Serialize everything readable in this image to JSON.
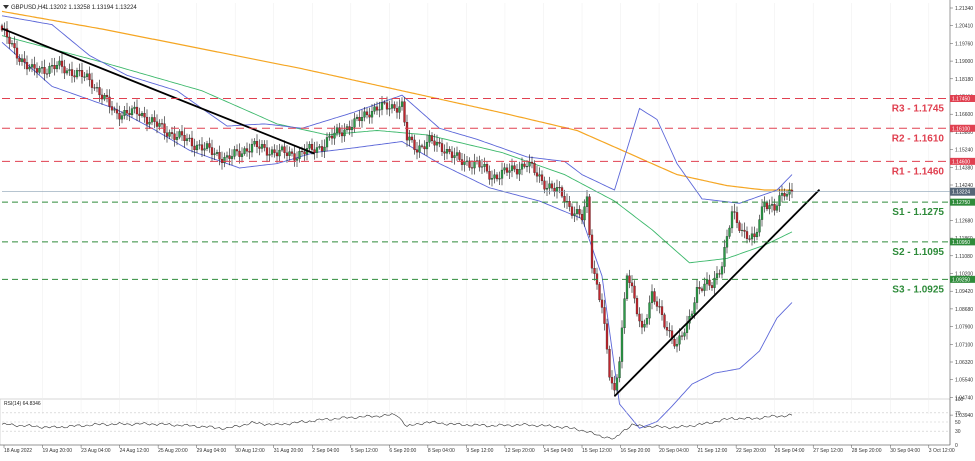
{
  "header": {
    "symbol_label": "GBPUSD,H4",
    "ohlc_text": "1.13202 1.13258 1.13194 1.13224"
  },
  "chart_data": {
    "type": "candlestick",
    "y_axis": {
      "range": [
        1.031,
        1.2178
      ],
      "ticks": [
        "1.21340",
        "1.20410",
        "1.19760",
        "1.19000",
        "1.18180",
        "1.17400",
        "1.16600",
        "1.15800",
        "1.15240",
        "1.14380",
        "1.14240",
        "1.13460",
        "1.12680",
        "1.11860",
        "1.11080",
        "1.10200",
        "1.09420",
        "1.08680",
        "1.07900",
        "1.07100",
        "1.06320",
        "1.05540",
        "1.04740",
        "1.03940"
      ]
    },
    "x_axis": {
      "ticks": [
        "18 Aug 2022",
        "19 Aug 20:00",
        "23 Aug 04:00",
        "24 Aug 12:00",
        "25 Aug 20:00",
        "29 Aug 04:00",
        "30 Aug 12:00",
        "31 Aug 20:00",
        "2 Sep 04:00",
        "5 Sep 12:00",
        "6 Sep 20:00",
        "8 Sep 04:00",
        "9 Sep 12:00",
        "12 Sep 20:00",
        "14 Sep 04:00",
        "15 Sep 12:00",
        "16 Sep 20:00",
        "20 Sep 04:00",
        "21 Sep 12:00",
        "22 Sep 20:00",
        "26 Sep 04:00",
        "27 Sep 12:00",
        "28 Sep 20:00",
        "30 Sep 04:00",
        "3 Oct 12:00"
      ]
    },
    "current_price": 1.13224,
    "current_price_label": "1.13224",
    "levels": [
      {
        "label": "R3 - 1.1745",
        "tag": "1.17450",
        "value": 1.1745,
        "color": "#e04050",
        "dash": "8,5"
      },
      {
        "label": "R2 - 1.1610",
        "tag": "1.16100",
        "value": 1.161,
        "color": "#e04050",
        "dash": "8,5"
      },
      {
        "label": "R1 - 1.1460",
        "tag": "1.14600",
        "value": 1.146,
        "color": "#e04050",
        "dash": "8,5"
      },
      {
        "label": "S1 - 1.1275",
        "tag": "1.12750",
        "value": 1.1275,
        "color": "#2e8b3a",
        "dash": "6,4"
      },
      {
        "label": "S2 - 1.1095",
        "tag": "1.10950",
        "value": 1.1095,
        "color": "#2e8b3a",
        "dash": "6,4"
      },
      {
        "label": "S3 - 1.0925",
        "tag": "1.09250",
        "value": 1.0925,
        "color": "#2e8b3a",
        "dash": "6,4"
      }
    ],
    "price_anchors": [
      [
        0,
        1.2055
      ],
      [
        5,
        1.196
      ],
      [
        12,
        1.187
      ],
      [
        22,
        1.189
      ],
      [
        30,
        1.186
      ],
      [
        36,
        1.182
      ],
      [
        45,
        1.168
      ],
      [
        55,
        1.168
      ],
      [
        65,
        1.16
      ],
      [
        75,
        1.155
      ],
      [
        90,
        1.147
      ],
      [
        100,
        1.153
      ],
      [
        110,
        1.15
      ],
      [
        118,
        1.149
      ],
      [
        128,
        1.153
      ],
      [
        134,
        1.159
      ],
      [
        141,
        1.163
      ],
      [
        147,
        1.169
      ],
      [
        155,
        1.171
      ],
      [
        160,
        1.171
      ],
      [
        162,
        1.156
      ],
      [
        166,
        1.152
      ],
      [
        171,
        1.155
      ],
      [
        177,
        1.152
      ],
      [
        183,
        1.146
      ],
      [
        190,
        1.145
      ],
      [
        196,
        1.139
      ],
      [
        204,
        1.142
      ],
      [
        210,
        1.145
      ],
      [
        218,
        1.135
      ],
      [
        224,
        1.131
      ],
      [
        228,
        1.124
      ],
      [
        232,
        1.12
      ],
      [
        234,
        1.128
      ],
      [
        236,
        1.1
      ],
      [
        240,
        1.08
      ],
      [
        243,
        1.049
      ],
      [
        245,
        1.041
      ],
      [
        247,
        1.058
      ],
      [
        250,
        1.095
      ],
      [
        256,
        1.07
      ],
      [
        260,
        1.085
      ],
      [
        265,
        1.073
      ],
      [
        270,
        1.062
      ],
      [
        274,
        1.071
      ],
      [
        278,
        1.088
      ],
      [
        284,
        1.09
      ],
      [
        288,
        1.1
      ],
      [
        292,
        1.122
      ],
      [
        296,
        1.115
      ],
      [
        301,
        1.11
      ],
      [
        305,
        1.128
      ],
      [
        309,
        1.125
      ],
      [
        313,
        1.131
      ],
      [
        316,
        1.13224
      ]
    ],
    "indicators": [
      {
        "name": "ma-200",
        "color": "#f5a623",
        "anchors": [
          [
            0,
            1.214
          ],
          [
            40,
            1.206
          ],
          [
            80,
            1.197
          ],
          [
            120,
            1.188
          ],
          [
            160,
            1.178
          ],
          [
            200,
            1.168
          ],
          [
            230,
            1.16
          ],
          [
            250,
            1.15
          ],
          [
            270,
            1.14
          ],
          [
            290,
            1.135
          ],
          [
            305,
            1.133
          ],
          [
            316,
            1.133
          ]
        ]
      },
      {
        "name": "ma-50",
        "color": "#3cb86b",
        "anchors": [
          [
            0,
            1.203
          ],
          [
            40,
            1.191
          ],
          [
            80,
            1.178
          ],
          [
            110,
            1.163
          ],
          [
            130,
            1.158
          ],
          [
            150,
            1.16
          ],
          [
            170,
            1.158
          ],
          [
            200,
            1.15
          ],
          [
            225,
            1.14
          ],
          [
            245,
            1.128
          ],
          [
            260,
            1.115
          ],
          [
            275,
            1.1
          ],
          [
            290,
            1.102
          ],
          [
            305,
            1.108
          ],
          [
            316,
            1.114
          ]
        ]
      },
      {
        "name": "bollinger-upper",
        "color": "#5b66d8",
        "anchors": [
          [
            0,
            1.212
          ],
          [
            20,
            1.208
          ],
          [
            35,
            1.194
          ],
          [
            50,
            1.185
          ],
          [
            70,
            1.178
          ],
          [
            90,
            1.162
          ],
          [
            105,
            1.163
          ],
          [
            120,
            1.161
          ],
          [
            140,
            1.168
          ],
          [
            160,
            1.176
          ],
          [
            175,
            1.161
          ],
          [
            190,
            1.156
          ],
          [
            210,
            1.148
          ],
          [
            225,
            1.146
          ],
          [
            232,
            1.14
          ],
          [
            245,
            1.133
          ],
          [
            255,
            1.17
          ],
          [
            262,
            1.165
          ],
          [
            270,
            1.145
          ],
          [
            280,
            1.129
          ],
          [
            295,
            1.127
          ],
          [
            310,
            1.133
          ],
          [
            316,
            1.14
          ]
        ]
      },
      {
        "name": "bollinger-lower",
        "color": "#5b66d8",
        "anchors": [
          [
            0,
            1.2
          ],
          [
            20,
            1.18
          ],
          [
            45,
            1.17
          ],
          [
            60,
            1.161
          ],
          [
            75,
            1.151
          ],
          [
            95,
            1.143
          ],
          [
            110,
            1.145
          ],
          [
            125,
            1.15
          ],
          [
            140,
            1.152
          ],
          [
            160,
            1.155
          ],
          [
            175,
            1.145
          ],
          [
            195,
            1.134
          ],
          [
            215,
            1.128
          ],
          [
            232,
            1.12
          ],
          [
            240,
            1.094
          ],
          [
            247,
            1.036
          ],
          [
            255,
            1.025
          ],
          [
            262,
            1.028
          ],
          [
            268,
            1.035
          ],
          [
            276,
            1.045
          ],
          [
            285,
            1.05
          ],
          [
            295,
            1.052
          ],
          [
            303,
            1.06
          ],
          [
            310,
            1.075
          ],
          [
            316,
            1.082
          ]
        ]
      }
    ],
    "trendlines": [
      {
        "name": "downtrend-line",
        "from": [
          0,
          1.2062
        ],
        "to": [
          125,
          1.1495
        ]
      },
      {
        "name": "uptrend-line",
        "from": [
          245,
          1.0395
        ],
        "to": [
          327,
          1.1332
        ]
      }
    ],
    "rsi": {
      "label": "RSI(14) 64.8346",
      "range": [
        0,
        100
      ],
      "ticks": [
        "100",
        "70",
        "50",
        "30",
        "0"
      ],
      "anchors": [
        [
          0,
          45
        ],
        [
          20,
          38
        ],
        [
          40,
          45
        ],
        [
          60,
          46
        ],
        [
          75,
          42
        ],
        [
          90,
          36
        ],
        [
          100,
          48
        ],
        [
          110,
          44
        ],
        [
          120,
          50
        ],
        [
          128,
          55
        ],
        [
          140,
          60
        ],
        [
          150,
          63
        ],
        [
          158,
          66
        ],
        [
          162,
          40
        ],
        [
          170,
          50
        ],
        [
          180,
          45
        ],
        [
          195,
          42
        ],
        [
          210,
          44
        ],
        [
          222,
          40
        ],
        [
          230,
          35
        ],
        [
          238,
          22
        ],
        [
          245,
          12
        ],
        [
          248,
          30
        ],
        [
          252,
          43
        ],
        [
          260,
          40
        ],
        [
          270,
          38
        ],
        [
          280,
          45
        ],
        [
          292,
          58
        ],
        [
          300,
          57
        ],
        [
          308,
          62
        ],
        [
          316,
          64.8
        ]
      ]
    }
  }
}
